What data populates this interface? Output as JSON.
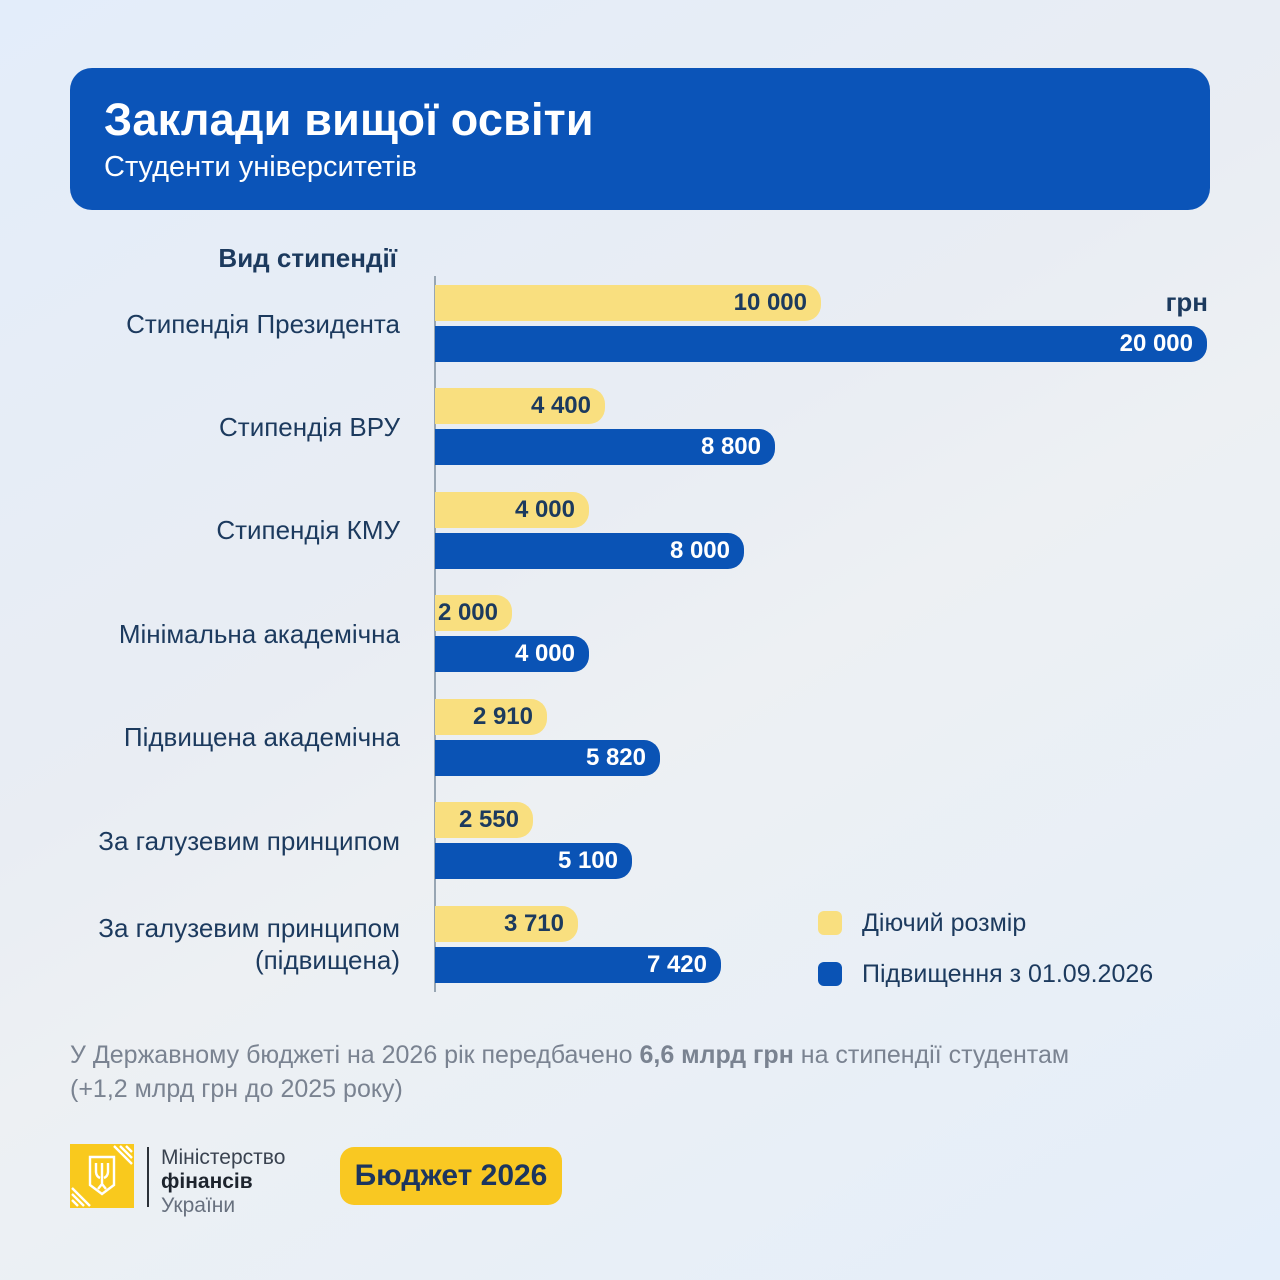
{
  "header": {
    "title": "Заклади вищої освіти",
    "subtitle": "Студенти університетів"
  },
  "chart": {
    "column_header": "Вид стипендії",
    "unit_label": "грн",
    "rows": [
      {
        "label": "Стипендія Президента",
        "current_label": "10 000",
        "new_label": "20 000"
      },
      {
        "label": "Стипендія ВРУ",
        "current_label": "4 400",
        "new_label": "8 800"
      },
      {
        "label": "Стипендія КМУ",
        "current_label": "4 000",
        "new_label": "8 000"
      },
      {
        "label": "Мінімальна академічна",
        "current_label": "2 000",
        "new_label": "4 000"
      },
      {
        "label": "Підвищена академічна",
        "current_label": "2 910",
        "new_label": "5 820"
      },
      {
        "label": "За галузевим принципом",
        "current_label": "2 550",
        "new_label": "5 100"
      },
      {
        "label": "За галузевим принципом\n(підвищена)",
        "current_label": "3 710",
        "new_label": "7 420"
      }
    ],
    "legend": [
      {
        "label": "Діючий розмір",
        "color": "#F9DF7F"
      },
      {
        "label": "Підвищення з 01.09.2026",
        "color": "#0A53B5"
      }
    ]
  },
  "chart_data": {
    "type": "bar",
    "orientation": "horizontal",
    "title": "Заклади вищої освіти — Студенти університетів",
    "ylabel": "Вид стипендії",
    "unit": "грн",
    "xlim": [
      0,
      20000
    ],
    "grid": false,
    "legend_position": "bottom-right",
    "categories": [
      "Стипендія Президента",
      "Стипендія ВРУ",
      "Стипендія КМУ",
      "Мінімальна академічна",
      "Підвищена академічна",
      "За галузевим принципом",
      "За галузевим принципом (підвищена)"
    ],
    "series": [
      {
        "name": "Діючий розмір",
        "color": "#F9DF7F",
        "values": [
          10000,
          4400,
          4000,
          2000,
          2910,
          2550,
          3710
        ]
      },
      {
        "name": "Підвищення з 01.09.2026",
        "color": "#0A53B5",
        "values": [
          20000,
          8800,
          8000,
          4000,
          5820,
          5100,
          7420
        ]
      }
    ]
  },
  "footer": {
    "line1_prefix": "У Державному бюджеті на 2026 рік передбачено ",
    "line1_bold": "6,6 млрд грн",
    "line1_suffix": " на стипендії студентам",
    "line2": "(+1,2 млрд грн до 2025 року)"
  },
  "branding": {
    "ministry_line1": "Міністерство",
    "ministry_line2": "фінансів",
    "ministry_line3": "України",
    "badge_label": "Бюджет 2026"
  },
  "colors": {
    "header_blue": "#0B54B8",
    "bar_blue": "#0A53B5",
    "bar_yellow": "#F9DF7F",
    "gold": "#F9C91D",
    "navy_text": "#1C3A5E",
    "footer_gray": "#7A8391",
    "background_light": "#E6EFF9",
    "axis_gray": "#98A6B3"
  }
}
